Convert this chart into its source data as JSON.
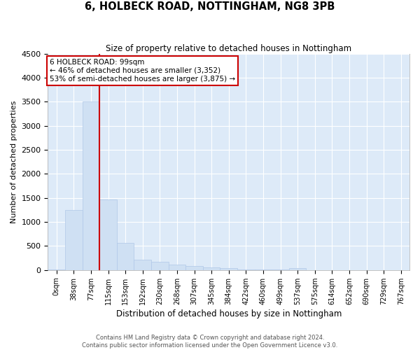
{
  "title": "6, HOLBECK ROAD, NOTTINGHAM, NG8 3PB",
  "subtitle": "Size of property relative to detached houses in Nottingham",
  "xlabel": "Distribution of detached houses by size in Nottingham",
  "ylabel": "Number of detached properties",
  "bar_color": "#cfe0f3",
  "bar_edge_color": "#b0c8e8",
  "background_color": "#ddeaf8",
  "grid_color": "#ffffff",
  "categories": [
    "0sqm",
    "38sqm",
    "77sqm",
    "115sqm",
    "153sqm",
    "192sqm",
    "230sqm",
    "268sqm",
    "307sqm",
    "345sqm",
    "384sqm",
    "422sqm",
    "460sqm",
    "499sqm",
    "537sqm",
    "575sqm",
    "614sqm",
    "652sqm",
    "690sqm",
    "729sqm",
    "767sqm"
  ],
  "values": [
    10,
    1250,
    3500,
    1470,
    570,
    220,
    175,
    110,
    80,
    50,
    40,
    10,
    10,
    5,
    45,
    0,
    0,
    0,
    0,
    0,
    0
  ],
  "ylim": [
    0,
    4500
  ],
  "yticks": [
    0,
    500,
    1000,
    1500,
    2000,
    2500,
    3000,
    3500,
    4000,
    4500
  ],
  "red_line_bin_index": 2,
  "annotation_text_line1": "6 HOLBECK ROAD: 99sqm",
  "annotation_text_line2": "← 46% of detached houses are smaller (3,352)",
  "annotation_text_line3": "53% of semi-detached houses are larger (3,875) →",
  "annotation_box_color": "#ffffff",
  "annotation_border_color": "#cc0000",
  "footer_line1": "Contains HM Land Registry data © Crown copyright and database right 2024.",
  "footer_line2": "Contains public sector information licensed under the Open Government Licence v3.0."
}
